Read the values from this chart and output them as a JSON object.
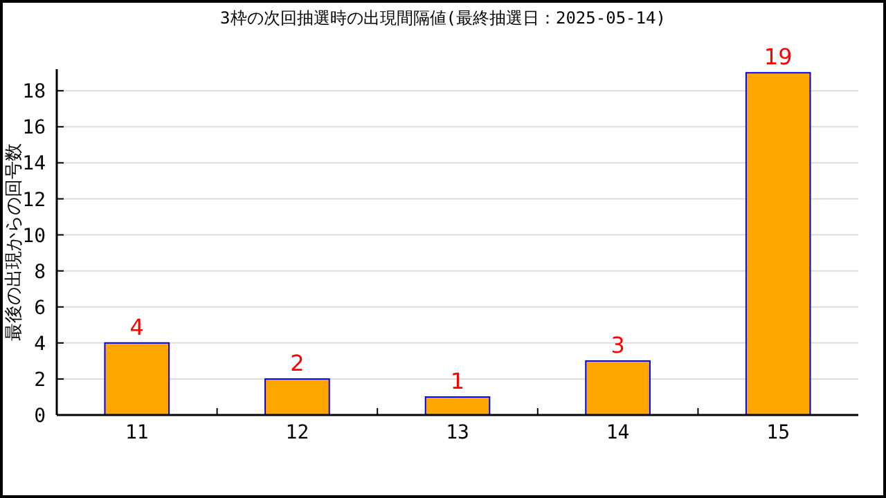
{
  "chart_data": {
    "type": "bar",
    "title": "3枠の次回抽選時の出現間隔値(最終抽選日：2025-05-14)",
    "ylabel": "最後の出現からの回号数",
    "categories": [
      "11",
      "12",
      "13",
      "14",
      "15"
    ],
    "values": [
      4,
      2,
      1,
      3,
      19
    ],
    "color": "#ffa500",
    "ylim": [
      0,
      19.2
    ],
    "yticks": [
      0,
      2,
      4,
      6,
      8,
      10,
      12,
      14,
      16,
      18
    ],
    "grid": "y",
    "data_labels": true
  }
}
